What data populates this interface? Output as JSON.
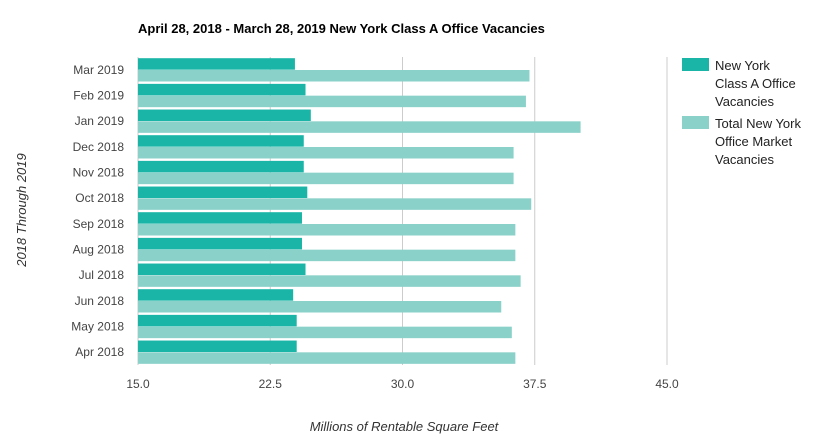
{
  "chart_data": {
    "type": "bar",
    "orientation": "horizontal",
    "title": "April 28, 2018 - March 28, 2019 New York Class A Office Vacancies",
    "xlabel": "Millions of Rentable Square Feet",
    "ylabel": "2018 Through 2019",
    "xlim": [
      15.0,
      45.0
    ],
    "x_ticks": [
      "15.0",
      "22.5",
      "30.0",
      "37.5",
      "45.0"
    ],
    "categories": [
      "Mar 2019",
      "Feb 2019",
      "Jan 2019",
      "Dec 2018",
      "Nov 2018",
      "Oct 2018",
      "Sep 2018",
      "Aug 2018",
      "Jul 2018",
      "Jun 2018",
      "May 2018",
      "Apr 2018"
    ],
    "series": [
      {
        "name": "New York Class A Office Vacancies",
        "legend_lines": [
          "New York",
          "Class A Office",
          "Vacancies"
        ],
        "color": "#1ab5a6",
        "values": [
          23.9,
          24.5,
          24.8,
          24.4,
          24.4,
          24.6,
          24.3,
          24.3,
          24.5,
          23.8,
          24.0,
          24.0
        ]
      },
      {
        "name": "Total New York Office Market Vacancies",
        "legend_lines": [
          "Total New York",
          "Office Market",
          "Vacancies"
        ],
        "color": "#8ad1c9",
        "values": [
          37.2,
          37.0,
          40.1,
          36.3,
          36.3,
          37.3,
          36.4,
          36.4,
          36.7,
          35.6,
          36.2,
          36.4
        ]
      }
    ],
    "grid": true,
    "legend_position": "right"
  }
}
